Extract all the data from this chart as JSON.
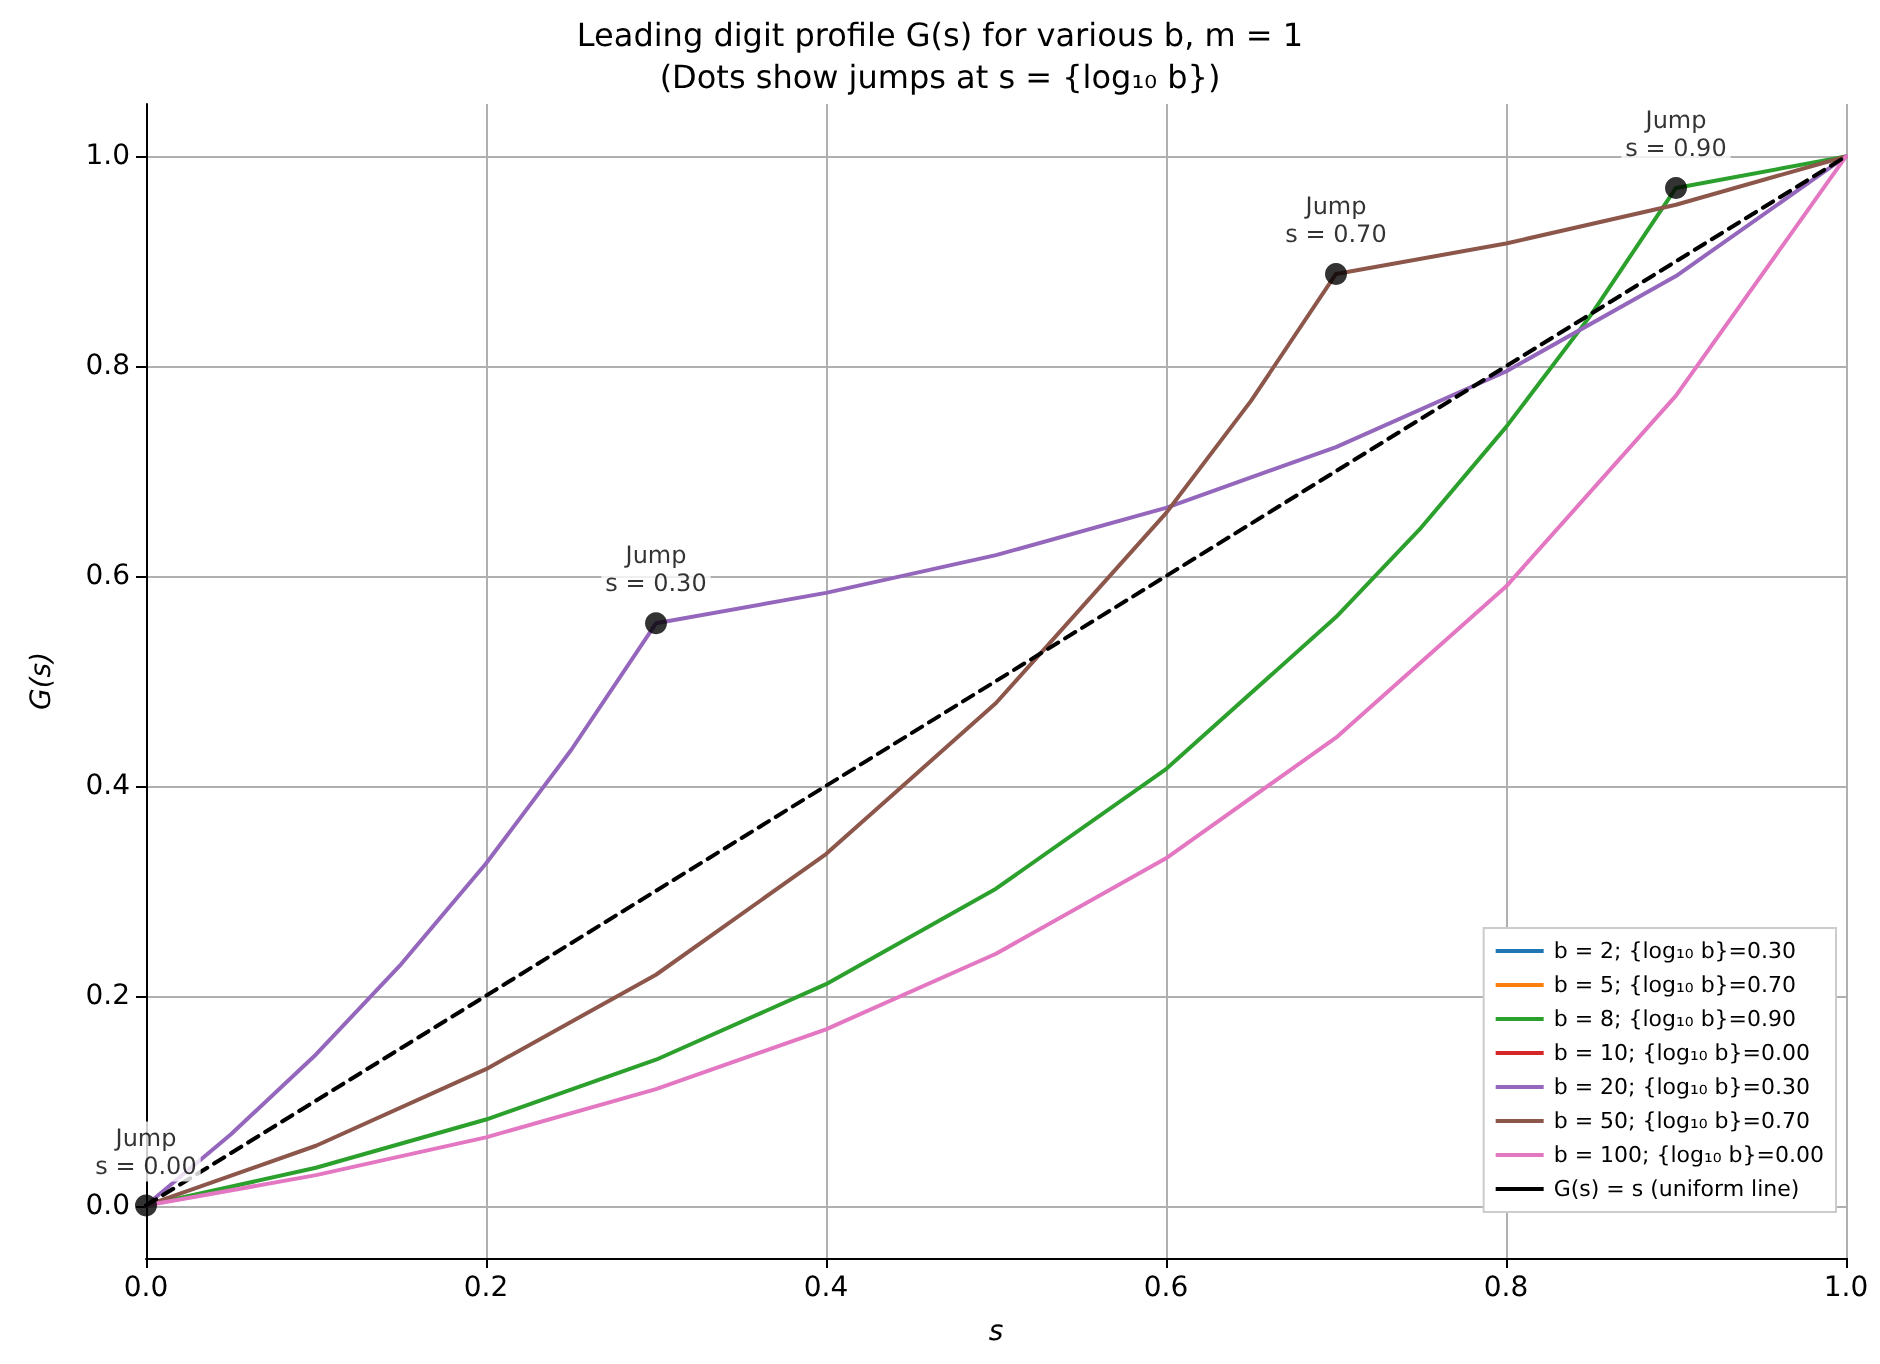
{
  "chart_data": {
    "type": "line",
    "title": "Leading digit profile G(s) for various b, m = 1\n(Dots show jumps at s = {log₁₀ b})",
    "xlabel": "s",
    "ylabel": "G(s)",
    "xlim": [
      0,
      1
    ],
    "ylim": [
      -0.05,
      1.05
    ],
    "xticks": [
      {
        "value": 0,
        "label": "0.0"
      },
      {
        "value": 0.2,
        "label": "0.2"
      },
      {
        "value": 0.4,
        "label": "0.4"
      },
      {
        "value": 0.6,
        "label": "0.6"
      },
      {
        "value": 0.8,
        "label": "0.8"
      },
      {
        "value": 1,
        "label": "1.0"
      }
    ],
    "yticks": [
      {
        "value": 0,
        "label": "0.0"
      },
      {
        "value": 0.2,
        "label": "0.2"
      },
      {
        "value": 0.4,
        "label": "0.4"
      },
      {
        "value": 0.6,
        "label": "0.6"
      },
      {
        "value": 0.8,
        "label": "0.8"
      },
      {
        "value": 1,
        "label": "1.0"
      }
    ],
    "grid": true,
    "legend": "bottom right",
    "marker": "none",
    "series": [
      {
        "name": "b = 2; {log₁₀ b}=0.30",
        "color": "#1f77b4"
      },
      {
        "name": "b = 5; {log₁₀ b}=0.70",
        "color": "#ff7f0e"
      },
      {
        "name": "b = 8; {log₁₀ b}=0.90",
        "color": "#2ca02c",
        "x": [
          0,
          0.1,
          0.2,
          0.3,
          0.4,
          0.5,
          0.6,
          0.7,
          0.75,
          0.8,
          0.85,
          0.9,
          1.0
        ],
        "values": [
          0,
          0.036,
          0.082,
          0.139,
          0.211,
          0.302,
          0.416,
          0.561,
          0.646,
          0.742,
          0.849,
          0.97,
          1
        ]
      },
      {
        "name": "b = 10; {log₁₀ b}=0.00",
        "color": "#d62728"
      },
      {
        "name": "b = 20; {log₁₀ b}=0.30",
        "color": "#9467bd",
        "x": [
          0,
          0.05,
          0.1,
          0.15,
          0.2,
          0.25,
          0.3,
          0.4,
          0.5,
          0.6,
          0.7,
          0.8,
          0.9,
          1.0
        ],
        "values": [
          0,
          0.068,
          0.144,
          0.23,
          0.326,
          0.434,
          0.555,
          0.584,
          0.62,
          0.665,
          0.723,
          0.795,
          0.886,
          1
        ]
      },
      {
        "name": "b = 50; {log₁₀ b}=0.70",
        "color": "#8c564b",
        "x": [
          0,
          0.1,
          0.2,
          0.3,
          0.4,
          0.5,
          0.6,
          0.65,
          0.7,
          0.8,
          0.9,
          1.0
        ],
        "values": [
          0,
          0.057,
          0.13,
          0.22,
          0.335,
          0.479,
          0.66,
          0.767,
          0.888,
          0.917,
          0.954,
          1
        ]
      },
      {
        "name": "b = 100; {log₁₀ b}=0.00",
        "color": "#e377c2",
        "x": [
          0,
          0.1,
          0.2,
          0.3,
          0.4,
          0.5,
          0.6,
          0.7,
          0.8,
          0.9,
          1.0
        ],
        "values": [
          0,
          0.029,
          0.065,
          0.111,
          0.168,
          0.24,
          0.331,
          0.446,
          0.59,
          0.772,
          1
        ]
      },
      {
        "name": "G(s) = s (uniform line)",
        "color": "#000000",
        "line_style": "dashed",
        "x": [
          0,
          1
        ],
        "values": [
          0,
          1
        ]
      },
      {
        "type": "scatter",
        "marker": "circle",
        "color": "#000000",
        "x": [
          0,
          0.3,
          0.7,
          0.9
        ],
        "values": [
          0,
          0.555,
          0.888,
          0.97
        ]
      }
    ],
    "annotations": [
      {
        "text": "Jump\ns = 0.00",
        "x": 0,
        "y": 0
      },
      {
        "text": "Jump\ns = 0.30",
        "x": 0.3,
        "y": 0.555
      },
      {
        "text": "Jump\ns = 0.70",
        "x": 0.7,
        "y": 0.888
      },
      {
        "text": "Jump\ns = 0.90",
        "x": 0.9,
        "y": 0.97
      }
    ]
  }
}
